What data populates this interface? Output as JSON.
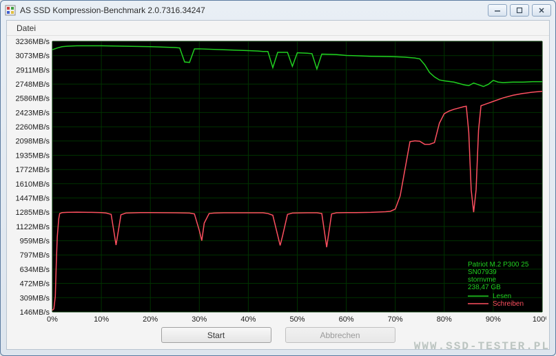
{
  "window": {
    "title": "AS SSD Kompression-Benchmark 2.0.7316.34247"
  },
  "menu": {
    "datei": "Datei"
  },
  "buttons": {
    "start": "Start",
    "cancel": "Abbrechen"
  },
  "watermark": "WWW.SSD-TESTER.PL",
  "drive_info": {
    "model": "Patriot M.2 P300 25",
    "serial": "SN07939",
    "driver": "stornvme",
    "size": "238,47 GB"
  },
  "legend": {
    "read": "Lesen",
    "write": "Schreiben"
  },
  "chart": {
    "plot_bg": "#000000",
    "grid_color": "#003300",
    "axis_label_color": "#1a1a1a",
    "read_color": "#20d020",
    "write_color": "#ff5060",
    "info_color": "#20d020",
    "legend_read_color": "#20d020",
    "legend_write_color": "#ff5060",
    "line_width": 1.5,
    "y_min": 146,
    "y_max": 3236,
    "y_ticks": [
      146,
      309,
      472,
      634,
      797,
      959,
      1122,
      1285,
      1447,
      1610,
      1772,
      1935,
      2098,
      2260,
      2423,
      2586,
      2748,
      2911,
      3073,
      3236
    ],
    "y_unit": "MB/s",
    "x_min": 0,
    "x_max": 100,
    "x_ticks": [
      0,
      10,
      20,
      30,
      40,
      50,
      60,
      70,
      80,
      90,
      100
    ],
    "x_unit": "%",
    "read_series": [
      [
        0,
        3140
      ],
      [
        0.5,
        3150
      ],
      [
        1,
        3160
      ],
      [
        2,
        3175
      ],
      [
        3,
        3180
      ],
      [
        5,
        3185
      ],
      [
        10,
        3185
      ],
      [
        15,
        3180
      ],
      [
        20,
        3175
      ],
      [
        25,
        3165
      ],
      [
        26,
        3160
      ],
      [
        27,
        3000
      ],
      [
        28,
        2995
      ],
      [
        29,
        3150
      ],
      [
        30,
        3150
      ],
      [
        35,
        3140
      ],
      [
        40,
        3130
      ],
      [
        42,
        3125
      ],
      [
        43,
        3120
      ],
      [
        44,
        3120
      ],
      [
        45,
        2935
      ],
      [
        46,
        3110
      ],
      [
        47,
        3110
      ],
      [
        48,
        3110
      ],
      [
        49,
        2950
      ],
      [
        50,
        3105
      ],
      [
        52,
        3100
      ],
      [
        53,
        3095
      ],
      [
        54,
        2920
      ],
      [
        55,
        3090
      ],
      [
        58,
        3085
      ],
      [
        60,
        3075
      ],
      [
        65,
        3065
      ],
      [
        70,
        3060
      ],
      [
        72,
        3055
      ],
      [
        73,
        3050
      ],
      [
        74,
        3045
      ],
      [
        75,
        3035
      ],
      [
        76,
        2970
      ],
      [
        77,
        2880
      ],
      [
        78,
        2830
      ],
      [
        79,
        2795
      ],
      [
        80,
        2785
      ],
      [
        82,
        2770
      ],
      [
        84,
        2740
      ],
      [
        85,
        2730
      ],
      [
        86,
        2760
      ],
      [
        87,
        2740
      ],
      [
        88,
        2720
      ],
      [
        89,
        2745
      ],
      [
        90,
        2790
      ],
      [
        91,
        2770
      ],
      [
        92,
        2765
      ],
      [
        94,
        2770
      ],
      [
        96,
        2770
      ],
      [
        98,
        2775
      ],
      [
        100,
        2775
      ]
    ],
    "write_series": [
      [
        0,
        165
      ],
      [
        0.3,
        180
      ],
      [
        0.6,
        320
      ],
      [
        0.8,
        700
      ],
      [
        1,
        1000
      ],
      [
        1.3,
        1210
      ],
      [
        1.5,
        1270
      ],
      [
        2,
        1280
      ],
      [
        3,
        1283
      ],
      [
        5,
        1285
      ],
      [
        8,
        1283
      ],
      [
        10,
        1280
      ],
      [
        11,
        1275
      ],
      [
        12,
        1260
      ],
      [
        13,
        910
      ],
      [
        14,
        1255
      ],
      [
        15,
        1275
      ],
      [
        18,
        1280
      ],
      [
        20,
        1280
      ],
      [
        25,
        1278
      ],
      [
        28,
        1275
      ],
      [
        29,
        1265
      ],
      [
        30,
        1075
      ],
      [
        30.5,
        960
      ],
      [
        31,
        1160
      ],
      [
        32,
        1270
      ],
      [
        33,
        1275
      ],
      [
        35,
        1278
      ],
      [
        40,
        1278
      ],
      [
        43,
        1278
      ],
      [
        44,
        1270
      ],
      [
        45,
        1250
      ],
      [
        46,
        1020
      ],
      [
        46.5,
        905
      ],
      [
        47,
        1015
      ],
      [
        48,
        1260
      ],
      [
        49,
        1275
      ],
      [
        52,
        1278
      ],
      [
        54,
        1278
      ],
      [
        55,
        1270
      ],
      [
        56,
        885
      ],
      [
        57,
        1265
      ],
      [
        58,
        1278
      ],
      [
        60,
        1280
      ],
      [
        62,
        1280
      ],
      [
        65,
        1283
      ],
      [
        68,
        1290
      ],
      [
        69,
        1295
      ],
      [
        70,
        1320
      ],
      [
        71,
        1470
      ],
      [
        72,
        1780
      ],
      [
        73,
        2090
      ],
      [
        74,
        2100
      ],
      [
        75,
        2095
      ],
      [
        76,
        2060
      ],
      [
        77,
        2060
      ],
      [
        78,
        2080
      ],
      [
        79,
        2300
      ],
      [
        80,
        2410
      ],
      [
        81,
        2440
      ],
      [
        82,
        2460
      ],
      [
        83,
        2475
      ],
      [
        84,
        2490
      ],
      [
        84.5,
        2495
      ],
      [
        85,
        2200
      ],
      [
        85.5,
        1540
      ],
      [
        86,
        1285
      ],
      [
        86.5,
        1540
      ],
      [
        87,
        2220
      ],
      [
        87.5,
        2500
      ],
      [
        88,
        2510
      ],
      [
        89,
        2530
      ],
      [
        90,
        2550
      ],
      [
        92,
        2590
      ],
      [
        94,
        2620
      ],
      [
        96,
        2640
      ],
      [
        98,
        2655
      ],
      [
        100,
        2665
      ]
    ]
  }
}
